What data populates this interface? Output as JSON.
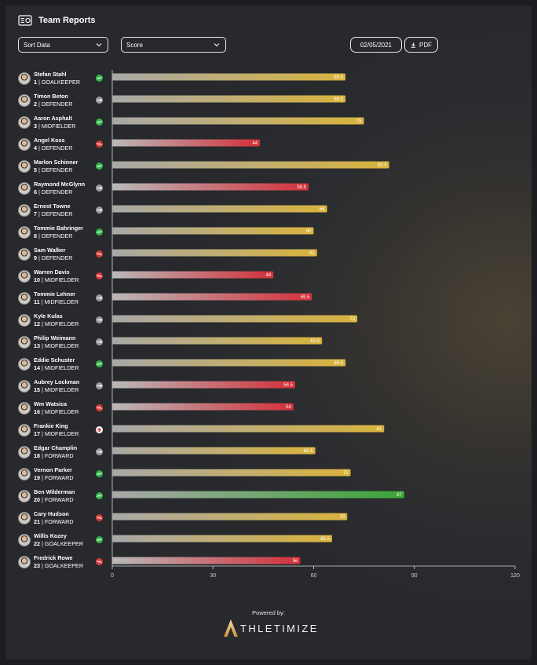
{
  "header": {
    "title": "Team Reports",
    "icon": "report-card-icon"
  },
  "controls": {
    "sort_label": "Sort Data",
    "metric_label": "Score",
    "date": "02/05/2021",
    "pdf_label": "PDF"
  },
  "chart_data": {
    "type": "bar",
    "orientation": "horizontal",
    "xlim": [
      0,
      120
    ],
    "xticks": [
      0,
      30,
      60,
      90,
      120
    ],
    "colors": {
      "high": "#d7b23a",
      "medium": "#d7b23a",
      "low": "#d7343c",
      "top": "#3aa537"
    },
    "rows": [
      {
        "name": "Stefan Stahl",
        "number": "1",
        "position": "GOALKEEPER",
        "value": 69.5,
        "trend": "up"
      },
      {
        "name": "Timon Beton",
        "number": "2",
        "position": "DEFENDER",
        "value": 69.5,
        "trend": "flat"
      },
      {
        "name": "Aaron Asphalt",
        "number": "3",
        "position": "MIDFIELDER",
        "value": 75,
        "trend": "up"
      },
      {
        "name": "Angel Koss",
        "number": "4",
        "position": "DEFENDER",
        "value": 44,
        "trend": "down"
      },
      {
        "name": "Marlon Schinner",
        "number": "5",
        "position": "DEFENDER",
        "value": 82.5,
        "trend": "up"
      },
      {
        "name": "Raymond McGlynn",
        "number": "6",
        "position": "DEFENDER",
        "value": 58.5,
        "trend": "flat"
      },
      {
        "name": "Ernest Towne",
        "number": "7",
        "position": "DEFENDER",
        "value": 64,
        "trend": "flat"
      },
      {
        "name": "Tommie Bahringer",
        "number": "8",
        "position": "DEFENDER",
        "value": 60,
        "trend": "up"
      },
      {
        "name": "Sam Walker",
        "number": "9",
        "position": "DEFENDER",
        "value": 61,
        "trend": "down"
      },
      {
        "name": "Warren Davis",
        "number": "10",
        "position": "MIDFIELDER",
        "value": 48,
        "trend": "down"
      },
      {
        "name": "Tommie Lehner",
        "number": "11",
        "position": "MIDFIELDER",
        "value": 59.5,
        "trend": "flat"
      },
      {
        "name": "Kyle Kulas",
        "number": "12",
        "position": "MIDFIELDER",
        "value": 73,
        "trend": "flat"
      },
      {
        "name": "Philip Weimann",
        "number": "13",
        "position": "MIDFIELDER",
        "value": 62.5,
        "trend": "flat"
      },
      {
        "name": "Eddie Schuster",
        "number": "14",
        "position": "MIDFIELDER",
        "value": 69.5,
        "trend": "up"
      },
      {
        "name": "Aubrey Lockman",
        "number": "15",
        "position": "MIDFIELDER",
        "value": 54.5,
        "trend": "flat"
      },
      {
        "name": "Wm Watsica",
        "number": "16",
        "position": "MIDFIELDER",
        "value": 54,
        "trend": "down"
      },
      {
        "name": "Frankie King",
        "number": "17",
        "position": "MIDFIELDER",
        "value": 81,
        "trend": "injury"
      },
      {
        "name": "Edgar Champlin",
        "number": "18",
        "position": "FORWARD",
        "value": 60.5,
        "trend": "flat"
      },
      {
        "name": "Vernon Parker",
        "number": "19",
        "position": "FORWARD",
        "value": 71,
        "trend": "up"
      },
      {
        "name": "Ben Wilderman",
        "number": "20",
        "position": "FORWARD",
        "value": 87,
        "trend": "up"
      },
      {
        "name": "Cary Hudson",
        "number": "21",
        "position": "FORWARD",
        "value": 70,
        "trend": "down"
      },
      {
        "name": "Willis Kozey",
        "number": "22",
        "position": "GOALKEEPER",
        "value": 65.5,
        "trend": "up"
      },
      {
        "name": "Fredrick Rowe",
        "number": "23",
        "position": "GOALKEEPER",
        "value": 56,
        "trend": "down"
      }
    ]
  },
  "footer": {
    "powered_by": "Powered by:",
    "brand": "THLETIMIZE",
    "brand_mark": "athletimize-logo-icon"
  }
}
